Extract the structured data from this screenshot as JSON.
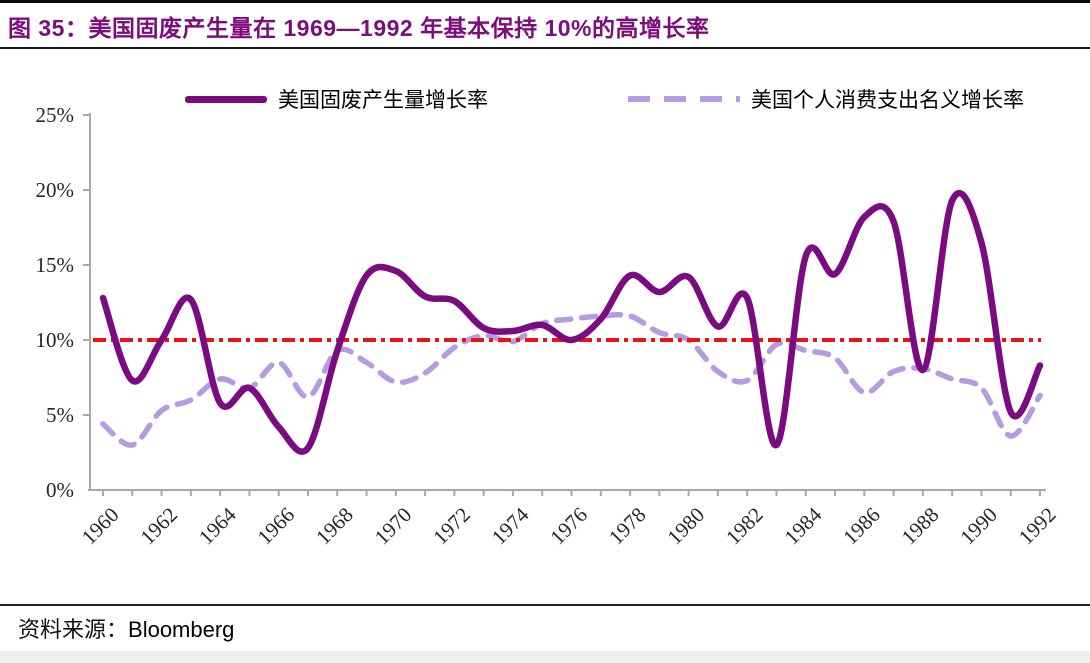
{
  "page": {
    "title": "图 35：美国固废产生量在 1969—1992 年基本保持 10%的高增长率",
    "source_label": "资料来源：",
    "source_value": "Bloomberg"
  },
  "colors": {
    "title": "#7D0C7D",
    "axis": "#A8A8A8",
    "tick_text": "#262626",
    "background": "#FFFFFF"
  },
  "chart_data": {
    "type": "line",
    "x": [
      1960,
      1961,
      1962,
      1963,
      1964,
      1965,
      1966,
      1967,
      1968,
      1969,
      1970,
      1971,
      1972,
      1973,
      1974,
      1975,
      1976,
      1977,
      1978,
      1979,
      1980,
      1981,
      1982,
      1983,
      1984,
      1985,
      1986,
      1987,
      1988,
      1989,
      1990,
      1991,
      1992
    ],
    "x_tick_label_step": 2,
    "ylim": [
      0,
      25
    ],
    "y_ticks": [
      0,
      5,
      10,
      15,
      20,
      25
    ],
    "y_tick_suffix": "%",
    "grid": false,
    "legend_position": "top",
    "series": [
      {
        "name": "美国固废产生量增长率",
        "line_style": "solid",
        "color": "#7A0B80",
        "values": [
          12.8,
          7.3,
          10.0,
          12.7,
          5.8,
          6.8,
          4.2,
          2.8,
          9.3,
          14.3,
          14.6,
          12.9,
          12.6,
          10.8,
          10.6,
          11.0,
          10.0,
          11.4,
          14.3,
          13.2,
          14.2,
          10.9,
          12.8,
          3.0,
          15.6,
          14.4,
          18.2,
          17.9,
          8.0,
          19.3,
          16.5,
          5.2,
          8.3
        ]
      },
      {
        "name": "美国个人消费支出名义增长率",
        "line_style": "dashed",
        "color": "#B49BE2",
        "values": [
          4.4,
          3.0,
          5.3,
          6.0,
          7.4,
          6.8,
          8.5,
          6.2,
          9.3,
          8.5,
          7.2,
          7.8,
          9.5,
          10.3,
          9.9,
          11.1,
          11.4,
          11.6,
          11.6,
          10.5,
          10.0,
          7.9,
          7.3,
          9.7,
          9.3,
          8.8,
          6.5,
          7.9,
          8.1,
          7.4,
          6.8,
          3.6,
          6.3
        ]
      }
    ],
    "reference_line": {
      "value": 10,
      "color": "#EE1111",
      "line_style": "dash-dot"
    }
  }
}
